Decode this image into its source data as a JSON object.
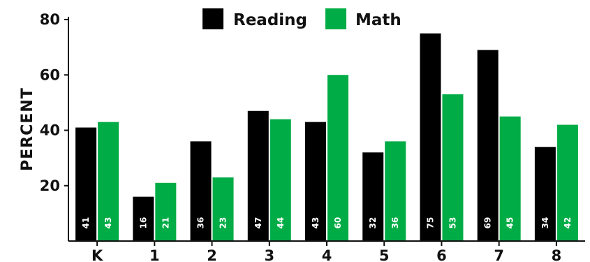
{
  "chart_data": {
    "type": "bar",
    "title": "",
    "xlabel": "",
    "ylabel": "PERCENT",
    "ylim": [
      0,
      80
    ],
    "yticks": [
      20,
      40,
      60,
      80
    ],
    "grid": false,
    "legend": "top-center",
    "categories": [
      "K",
      "1",
      "2",
      "3",
      "4",
      "5",
      "6",
      "7",
      "8"
    ],
    "series": [
      {
        "name": "Reading",
        "color": "#000000",
        "values": [
          41,
          16,
          36,
          47,
          43,
          32,
          75,
          69,
          34
        ]
      },
      {
        "name": "Math",
        "color": "#00ac45",
        "values": [
          43,
          21,
          23,
          44,
          60,
          36,
          53,
          45,
          42
        ]
      }
    ]
  }
}
